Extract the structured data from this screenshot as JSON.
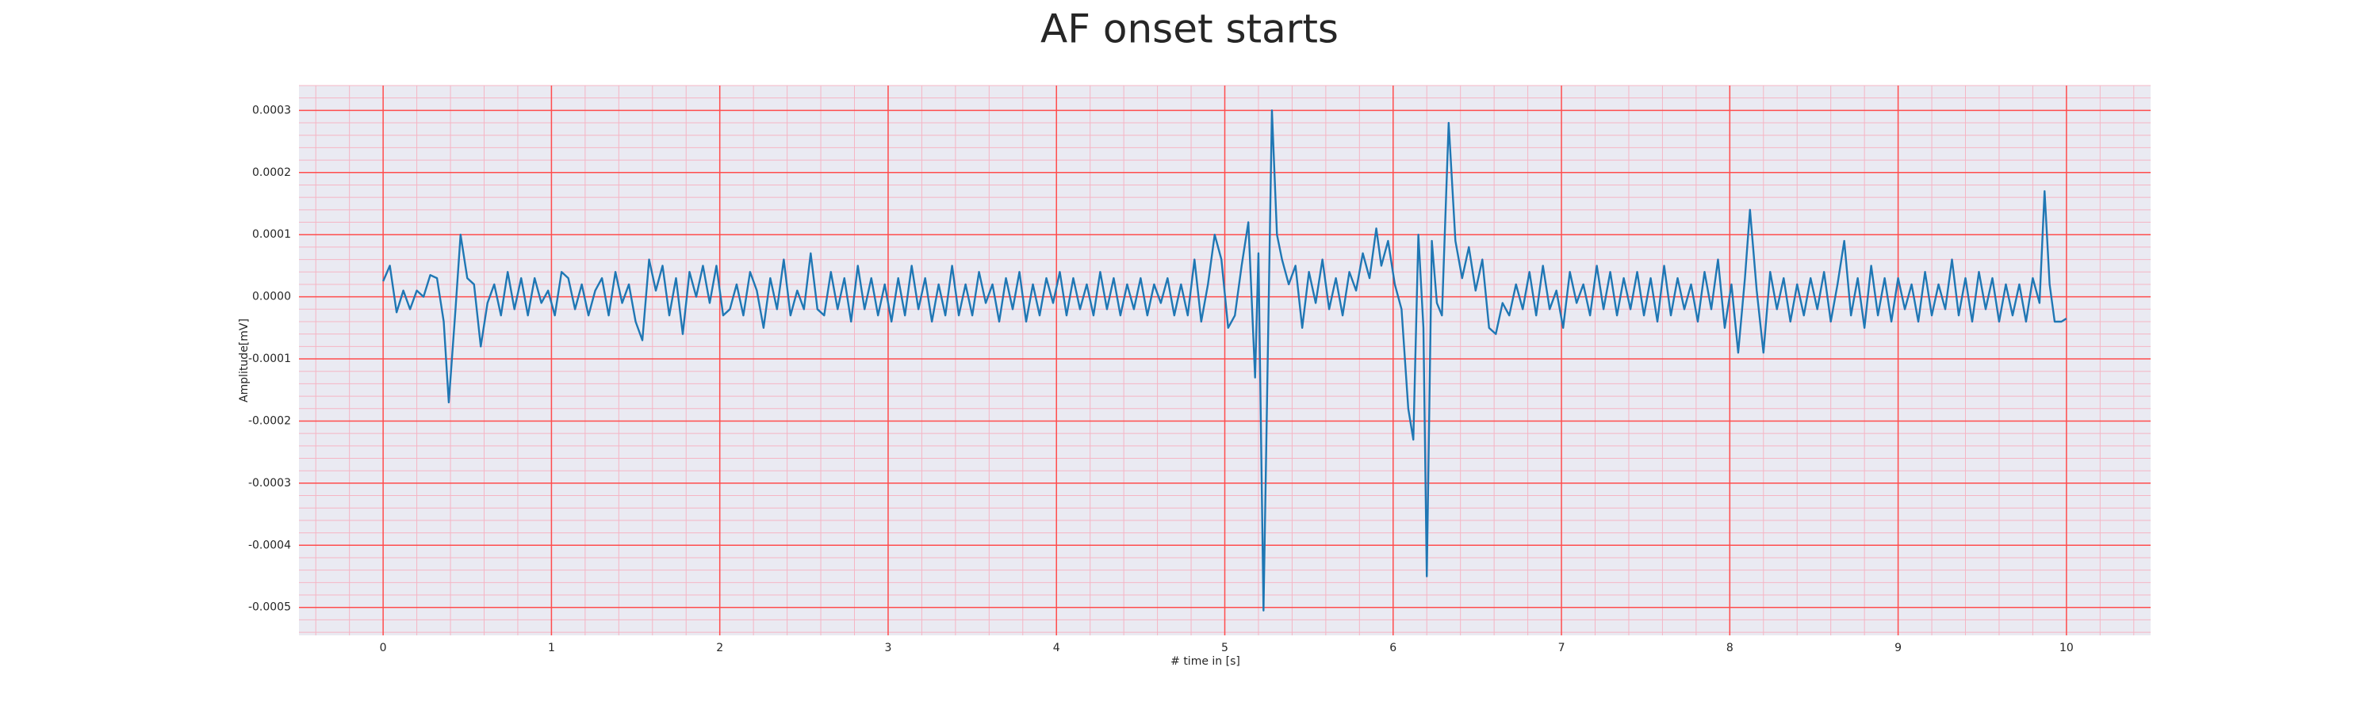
{
  "chart_data": {
    "type": "line",
    "title": "AF onset starts",
    "x_label": "# time in [s]",
    "y_label": "Amplitude[mV]",
    "color": "#1f77b4",
    "grid": true,
    "background": "#eaeaf2",
    "grid_color": "#ff4d4d",
    "minor_grid_color": "#f5b5c4",
    "xlim": [
      -0.5,
      10.5
    ],
    "xticks": [
      0,
      1,
      2,
      3,
      4,
      5,
      6,
      7,
      8,
      9,
      10
    ],
    "ylim": [
      -0.000545,
      0.00034
    ],
    "yticks": [
      -0.0005,
      -0.0004,
      -0.0003,
      -0.0002,
      -0.0001,
      {
        "value": 0,
        "label": "0.0000"
      },
      0.0001,
      0.0002,
      0.0003
    ],
    "x": [
      0.0,
      0.04,
      0.08,
      0.12,
      0.16,
      0.2,
      0.24,
      0.28,
      0.32,
      0.36,
      0.39,
      0.43,
      0.46,
      0.5,
      0.54,
      0.58,
      0.62,
      0.66,
      0.7,
      0.74,
      0.78,
      0.82,
      0.86,
      0.9,
      0.94,
      0.98,
      1.02,
      1.06,
      1.1,
      1.14,
      1.18,
      1.22,
      1.26,
      1.3,
      1.34,
      1.38,
      1.42,
      1.46,
      1.5,
      1.54,
      1.58,
      1.62,
      1.66,
      1.7,
      1.74,
      1.78,
      1.82,
      1.86,
      1.9,
      1.94,
      1.98,
      2.02,
      2.06,
      2.1,
      2.14,
      2.18,
      2.22,
      2.26,
      2.3,
      2.34,
      2.38,
      2.42,
      2.46,
      2.5,
      2.54,
      2.58,
      2.62,
      2.66,
      2.7,
      2.74,
      2.78,
      2.82,
      2.86,
      2.9,
      2.94,
      2.98,
      3.02,
      3.06,
      3.1,
      3.14,
      3.18,
      3.22,
      3.26,
      3.3,
      3.34,
      3.38,
      3.42,
      3.46,
      3.5,
      3.54,
      3.58,
      3.62,
      3.66,
      3.7,
      3.74,
      3.78,
      3.82,
      3.86,
      3.9,
      3.94,
      3.98,
      4.02,
      4.06,
      4.1,
      4.14,
      4.18,
      4.22,
      4.26,
      4.3,
      4.34,
      4.38,
      4.42,
      4.46,
      4.5,
      4.54,
      4.58,
      4.62,
      4.66,
      4.7,
      4.74,
      4.78,
      4.82,
      4.86,
      4.9,
      4.94,
      4.98,
      5.02,
      5.06,
      5.1,
      5.14,
      5.18,
      5.2,
      5.23,
      5.28,
      5.31,
      5.34,
      5.38,
      5.42,
      5.46,
      5.5,
      5.54,
      5.58,
      5.62,
      5.66,
      5.7,
      5.74,
      5.78,
      5.82,
      5.86,
      5.9,
      5.93,
      5.97,
      6.01,
      6.05,
      6.09,
      6.12,
      6.15,
      6.18,
      6.2,
      6.23,
      6.26,
      6.29,
      6.33,
      6.37,
      6.41,
      6.45,
      6.49,
      6.53,
      6.57,
      6.61,
      6.65,
      6.69,
      6.73,
      6.77,
      6.81,
      6.85,
      6.89,
      6.93,
      6.97,
      7.01,
      7.05,
      7.09,
      7.13,
      7.17,
      7.21,
      7.25,
      7.29,
      7.33,
      7.37,
      7.41,
      7.45,
      7.49,
      7.53,
      7.57,
      7.61,
      7.65,
      7.69,
      7.73,
      7.77,
      7.81,
      7.85,
      7.89,
      7.93,
      7.97,
      8.01,
      8.05,
      8.09,
      8.12,
      8.16,
      8.2,
      8.24,
      8.28,
      8.32,
      8.36,
      8.4,
      8.44,
      8.48,
      8.52,
      8.56,
      8.6,
      8.64,
      8.68,
      8.72,
      8.76,
      8.8,
      8.84,
      8.88,
      8.92,
      8.96,
      9.0,
      9.04,
      9.08,
      9.12,
      9.16,
      9.2,
      9.24,
      9.28,
      9.32,
      9.36,
      9.4,
      9.44,
      9.48,
      9.52,
      9.56,
      9.6,
      9.64,
      9.68,
      9.72,
      9.76,
      9.8,
      9.84,
      9.87,
      9.9,
      9.93,
      9.97,
      10.0
    ],
    "values": [
      2.5e-05,
      5e-05,
      -2.5e-05,
      1e-05,
      -2e-05,
      1e-05,
      0,
      3.5e-05,
      3e-05,
      -4e-05,
      -0.00017,
      -2e-05,
      0.0001,
      3e-05,
      2e-05,
      -8e-05,
      -1e-05,
      2e-05,
      -3e-05,
      4e-05,
      -2e-05,
      3e-05,
      -3e-05,
      3e-05,
      -1e-05,
      1e-05,
      -3e-05,
      4e-05,
      3e-05,
      -2e-05,
      2e-05,
      -3e-05,
      1e-05,
      3e-05,
      -3e-05,
      4e-05,
      -1e-05,
      2e-05,
      -4e-05,
      -7e-05,
      6e-05,
      1e-05,
      5e-05,
      -3e-05,
      3e-05,
      -6e-05,
      4e-05,
      0,
      5e-05,
      -1e-05,
      5e-05,
      -3e-05,
      -2e-05,
      2e-05,
      -3e-05,
      4e-05,
      1e-05,
      -5e-05,
      3e-05,
      -2e-05,
      6e-05,
      -3e-05,
      1e-05,
      -2e-05,
      7e-05,
      -2e-05,
      -3e-05,
      4e-05,
      -2e-05,
      3e-05,
      -4e-05,
      5e-05,
      -2e-05,
      3e-05,
      -3e-05,
      2e-05,
      -4e-05,
      3e-05,
      -3e-05,
      5e-05,
      -2e-05,
      3e-05,
      -4e-05,
      2e-05,
      -3e-05,
      5e-05,
      -3e-05,
      2e-05,
      -3e-05,
      4e-05,
      -1e-05,
      2e-05,
      -4e-05,
      3e-05,
      -2e-05,
      4e-05,
      -4e-05,
      2e-05,
      -3e-05,
      3e-05,
      -1e-05,
      4e-05,
      -3e-05,
      3e-05,
      -2e-05,
      2e-05,
      -3e-05,
      4e-05,
      -2e-05,
      3e-05,
      -3e-05,
      2e-05,
      -2e-05,
      3e-05,
      -3e-05,
      2e-05,
      -1e-05,
      3e-05,
      -3e-05,
      2e-05,
      -3e-05,
      6e-05,
      -4e-05,
      2e-05,
      0.0001,
      6e-05,
      -5e-05,
      -3e-05,
      5e-05,
      0.00012,
      -0.00013,
      7e-05,
      -0.000505,
      0.0003,
      0.0001,
      6e-05,
      2e-05,
      5e-05,
      -5e-05,
      4e-05,
      -1e-05,
      6e-05,
      -2e-05,
      3e-05,
      -3e-05,
      4e-05,
      1e-05,
      7e-05,
      3e-05,
      0.00011,
      5e-05,
      9e-05,
      2e-05,
      -2e-05,
      -0.00018,
      -0.00023,
      0.0001,
      -5e-05,
      -0.00045,
      9e-05,
      -1e-05,
      -3e-05,
      0.00028,
      9e-05,
      3e-05,
      8e-05,
      1e-05,
      6e-05,
      -5e-05,
      -6e-05,
      -1e-05,
      -3e-05,
      2e-05,
      -2e-05,
      4e-05,
      -3e-05,
      5e-05,
      -2e-05,
      1e-05,
      -5e-05,
      4e-05,
      -1e-05,
      2e-05,
      -3e-05,
      5e-05,
      -2e-05,
      4e-05,
      -3e-05,
      3e-05,
      -2e-05,
      4e-05,
      -3e-05,
      3e-05,
      -4e-05,
      5e-05,
      -3e-05,
      3e-05,
      -2e-05,
      2e-05,
      -4e-05,
      4e-05,
      -2e-05,
      6e-05,
      -5e-05,
      2e-05,
      -9e-05,
      3e-05,
      0.00014,
      1e-05,
      -9e-05,
      4e-05,
      -2e-05,
      3e-05,
      -4e-05,
      2e-05,
      -3e-05,
      3e-05,
      -2e-05,
      4e-05,
      -4e-05,
      2e-05,
      9e-05,
      -3e-05,
      3e-05,
      -5e-05,
      5e-05,
      -3e-05,
      3e-05,
      -4e-05,
      3e-05,
      -2e-05,
      2e-05,
      -4e-05,
      4e-05,
      -3e-05,
      2e-05,
      -2e-05,
      6e-05,
      -3e-05,
      3e-05,
      -4e-05,
      4e-05,
      -2e-05,
      3e-05,
      -4e-05,
      2e-05,
      -3e-05,
      2e-05,
      -4e-05,
      3e-05,
      -1e-05,
      0.00017,
      2e-05,
      -4e-05,
      -4e-05,
      -3.5e-05
    ]
  }
}
